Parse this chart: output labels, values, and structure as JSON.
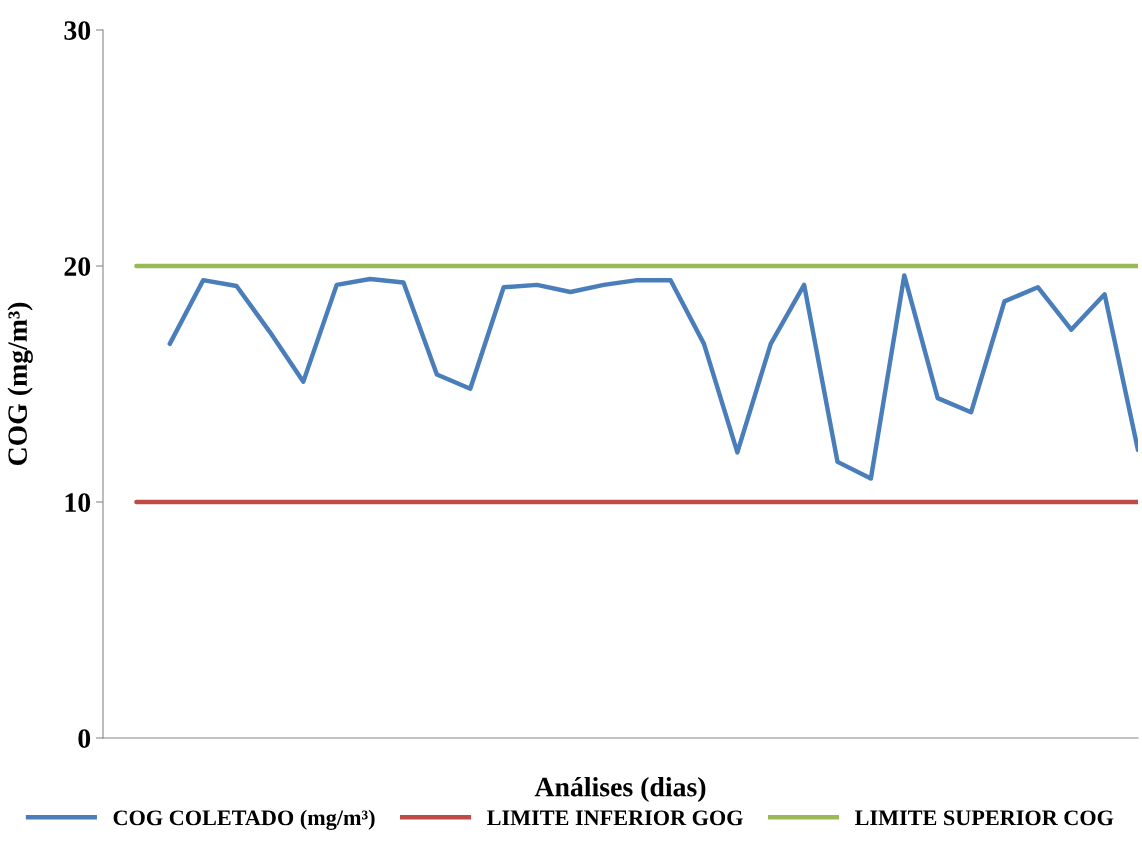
{
  "chart_data": {
    "type": "line",
    "xlabel": "Análises (dias)",
    "ylabel": "COG (mg/m³)",
    "categories": [
      null,
      null,
      null,
      null,
      null,
      null,
      null,
      null,
      null,
      null,
      null,
      null,
      null,
      null,
      null,
      null,
      null,
      null,
      null,
      null,
      null,
      null,
      null,
      null,
      null,
      null,
      null,
      null,
      null,
      null,
      null,
      null
    ],
    "series": [
      {
        "name": "COG COLETADO (mg/m³)",
        "color": "#4a7ebb",
        "values": [
          null,
          null,
          16.7,
          19.4,
          19.15,
          17.2,
          15.1,
          19.2,
          19.45,
          19.3,
          15.4,
          14.8,
          19.1,
          19.2,
          18.9,
          19.2,
          19.4,
          19.4,
          16.7,
          12.1,
          16.7,
          19.2,
          11.7,
          11.0,
          19.6,
          14.4,
          13.8,
          18.5,
          19.1,
          17.3,
          18.8,
          12.2
        ]
      },
      {
        "name": "LIMITE INFERIOR GOG",
        "color": "#be4b48",
        "values": [
          null,
          10,
          10,
          10,
          10,
          10,
          10,
          10,
          10,
          10,
          10,
          10,
          10,
          10,
          10,
          10,
          10,
          10,
          10,
          10,
          10,
          10,
          10,
          10,
          10,
          10,
          10,
          10,
          10,
          10,
          10,
          10
        ]
      },
      {
        "name": "LIMITE SUPERIOR COG",
        "color": "#98b954",
        "values": [
          null,
          20,
          20,
          20,
          20,
          20,
          20,
          20,
          20,
          20,
          20,
          20,
          20,
          20,
          20,
          20,
          20,
          20,
          20,
          20,
          20,
          20,
          20,
          20,
          20,
          20,
          20,
          20,
          20,
          20,
          20,
          20
        ]
      }
    ],
    "ylim": [
      0,
      30
    ],
    "yticks": [
      0,
      10,
      20,
      30
    ],
    "grid": false,
    "legend": "bottom",
    "marker": "none",
    "line_style": "solid",
    "tick_labels": "y"
  }
}
